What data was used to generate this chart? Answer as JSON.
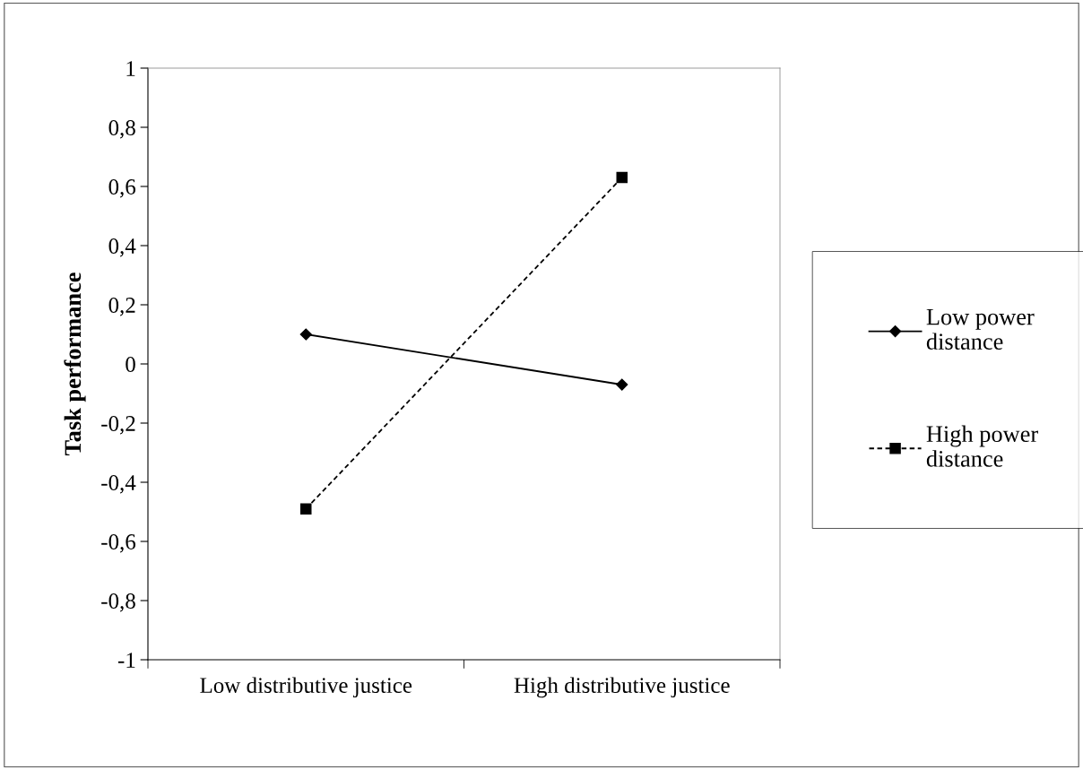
{
  "chart_data": {
    "type": "line",
    "ylabel": "Task performance",
    "categories": [
      "Low distributive justice",
      "High distributive justice"
    ],
    "series": [
      {
        "name": "Low power distance",
        "color": "#000000",
        "values": [
          0.1,
          -0.07
        ],
        "marker": "diamond",
        "line_style": "solid"
      },
      {
        "name": "High power distance",
        "color": "#000000",
        "values": [
          -0.49,
          0.63
        ],
        "marker": "square",
        "line_style": "dashed"
      }
    ],
    "ylim": [
      -1,
      1
    ],
    "yticks": [
      {
        "value": -1,
        "label": "-1"
      },
      {
        "value": -0.8,
        "label": "-0,8"
      },
      {
        "value": -0.6,
        "label": "-0,6"
      },
      {
        "value": -0.4,
        "label": "-0,4"
      },
      {
        "value": -0.2,
        "label": "-0,2"
      },
      {
        "value": 0,
        "label": "0"
      },
      {
        "value": 0.2,
        "label": "0,2"
      },
      {
        "value": 0.4,
        "label": "0,4"
      },
      {
        "value": 0.6,
        "label": "0,6"
      },
      {
        "value": 0.8,
        "label": "0,8"
      },
      {
        "value": 1,
        "label": "1"
      }
    ],
    "grid": false,
    "legend": "right"
  }
}
